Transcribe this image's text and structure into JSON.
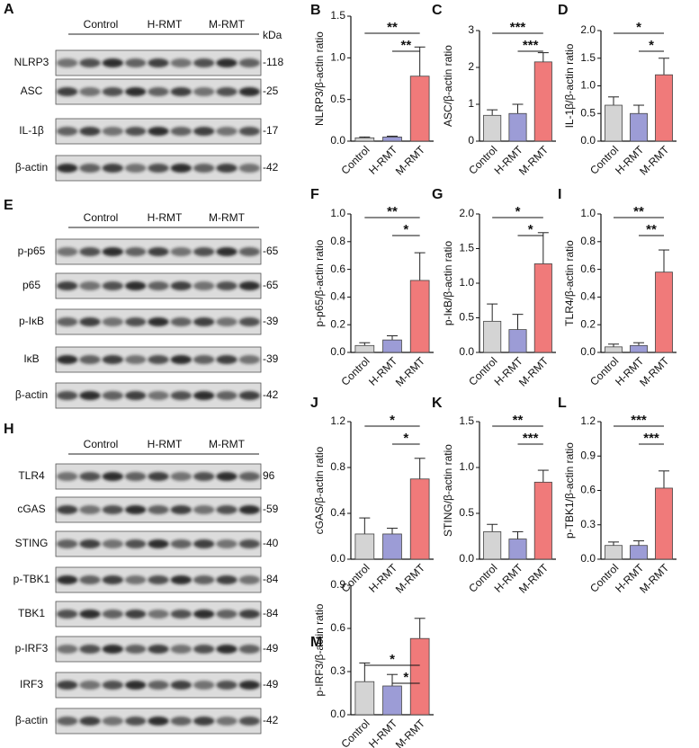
{
  "blots": [
    {
      "panel": "A",
      "unit": "kDa",
      "groups": [
        "Control",
        "H-RMT",
        "M-RMT"
      ],
      "rows": [
        {
          "label": "NLRP3",
          "marker": "-118"
        },
        {
          "label": "ASC",
          "marker": "-25"
        },
        {
          "label": "IL-1β",
          "marker": "-17"
        },
        {
          "label": "β-actin",
          "marker": "-42"
        }
      ]
    },
    {
      "panel": "E",
      "groups": [
        "Control",
        "H-RMT",
        "M-RMT"
      ],
      "rows": [
        {
          "label": "p-p65",
          "marker": "-65"
        },
        {
          "label": "p65",
          "marker": "-65"
        },
        {
          "label": "p-IκB",
          "marker": "-39"
        },
        {
          "label": "IκB",
          "marker": "-39"
        },
        {
          "label": "β-actin",
          "marker": "-42"
        }
      ]
    },
    {
      "panel": "H",
      "groups": [
        "Control",
        "H-RMT",
        "M-RMT"
      ],
      "rows": [
        {
          "label": "TLR4",
          "marker": "96"
        },
        {
          "label": "cGAS",
          "marker": "-59"
        },
        {
          "label": "STING",
          "marker": "-40"
        },
        {
          "label": "p-TBK1",
          "marker": "-84"
        },
        {
          "label": "TBK1",
          "marker": "-84"
        },
        {
          "label": "p-IRF3",
          "marker": "-49"
        },
        {
          "label": "IRF3",
          "marker": "-49"
        },
        {
          "label": "β-actin",
          "marker": "-42"
        }
      ]
    }
  ],
  "chart_data": [
    {
      "type": "bar",
      "panel": "B",
      "ylabel": "NLRP3/β-actin ratio",
      "categories": [
        "Control",
        "H-RMT",
        "M-RMT"
      ],
      "values": [
        0.04,
        0.05,
        0.78
      ],
      "errors": [
        0.01,
        0.01,
        0.35
      ],
      "colors": [
        "#d4d4d4",
        "#9c9cd6",
        "#f07a7a"
      ],
      "ylim": [
        0,
        1.5
      ],
      "yticks": [
        {
          "value": 0,
          "label": "0.0"
        },
        {
          "value": 0.5,
          "label": "0.5"
        },
        {
          "value": 1,
          "label": "1.0"
        },
        {
          "value": 1.5,
          "label": "1.5"
        }
      ],
      "significance": [
        "**",
        "**"
      ]
    },
    {
      "type": "bar",
      "panel": "C",
      "ylabel": "ASC/β-actin ratio",
      "categories": [
        "Control",
        "H-RMT",
        "M-RMT"
      ],
      "values": [
        0.7,
        0.75,
        2.15
      ],
      "errors": [
        0.15,
        0.25,
        0.25
      ],
      "colors": [
        "#d4d4d4",
        "#9c9cd6",
        "#f07a7a"
      ],
      "ylim": [
        0,
        3
      ],
      "yticks": [
        0,
        1,
        2,
        3
      ],
      "significance": [
        "***",
        "***"
      ]
    },
    {
      "type": "bar",
      "panel": "D",
      "ylabel": "IL-1β/β-actin ratio",
      "categories": [
        "Control",
        "H-RMT",
        "M-RMT"
      ],
      "values": [
        0.65,
        0.5,
        1.2
      ],
      "errors": [
        0.15,
        0.15,
        0.3
      ],
      "colors": [
        "#d4d4d4",
        "#9c9cd6",
        "#f07a7a"
      ],
      "ylim": [
        0,
        2
      ],
      "yticks": [
        {
          "value": 0,
          "label": "0.0"
        },
        {
          "value": 0.5,
          "label": "0.5"
        },
        {
          "value": 1,
          "label": "1.0"
        },
        {
          "value": 1.5,
          "label": "1.5"
        },
        {
          "value": 2,
          "label": "2.0"
        }
      ],
      "significance": [
        "*",
        "*"
      ]
    },
    {
      "type": "bar",
      "panel": "F",
      "ylabel": "p-p65/β-actin ratio",
      "categories": [
        "Control",
        "H-RMT",
        "M-RMT"
      ],
      "values": [
        0.05,
        0.09,
        0.52
      ],
      "errors": [
        0.02,
        0.03,
        0.2
      ],
      "colors": [
        "#d4d4d4",
        "#9c9cd6",
        "#f07a7a"
      ],
      "ylim": [
        0,
        1
      ],
      "yticks": [
        {
          "value": 0,
          "label": "0.0"
        },
        {
          "value": 0.2,
          "label": "0.2"
        },
        {
          "value": 0.4,
          "label": "0.4"
        },
        {
          "value": 0.6,
          "label": "0.6"
        },
        {
          "value": 0.8,
          "label": "0.8"
        },
        {
          "value": 1,
          "label": "1.0"
        }
      ],
      "significance": [
        "**",
        "*"
      ]
    },
    {
      "type": "bar",
      "panel": "G",
      "ylabel": "p-IκB/β-actin ratio",
      "categories": [
        "Control",
        "H-RMT",
        "M-RMT"
      ],
      "values": [
        0.45,
        0.33,
        1.28
      ],
      "errors": [
        0.25,
        0.22,
        0.45
      ],
      "colors": [
        "#d4d4d4",
        "#9c9cd6",
        "#f07a7a"
      ],
      "ylim": [
        0,
        2
      ],
      "yticks": [
        {
          "value": 0,
          "label": "0.0"
        },
        {
          "value": 0.5,
          "label": "0.5"
        },
        {
          "value": 1,
          "label": "1.0"
        },
        {
          "value": 1.5,
          "label": "1.5"
        },
        {
          "value": 2,
          "label": "2.0"
        }
      ],
      "significance": [
        "*",
        "*"
      ]
    },
    {
      "type": "bar",
      "panel": "I",
      "ylabel": "TLR4/β-actin ratio",
      "categories": [
        "Control",
        "H-RMT",
        "M-RMT"
      ],
      "values": [
        0.04,
        0.05,
        0.58
      ],
      "errors": [
        0.02,
        0.02,
        0.16
      ],
      "colors": [
        "#d4d4d4",
        "#9c9cd6",
        "#f07a7a"
      ],
      "ylim": [
        0,
        1
      ],
      "yticks": [
        {
          "value": 0,
          "label": "0.0"
        },
        {
          "value": 0.2,
          "label": "0.2"
        },
        {
          "value": 0.4,
          "label": "0.4"
        },
        {
          "value": 0.6,
          "label": "0.6"
        },
        {
          "value": 0.8,
          "label": "0.8"
        },
        {
          "value": 1,
          "label": "1.0"
        }
      ],
      "significance": [
        "**",
        "**"
      ]
    },
    {
      "type": "bar",
      "panel": "J",
      "ylabel": "cGAS/β-actin ratio",
      "categories": [
        "Control",
        "H-RMT",
        "M-RMT"
      ],
      "values": [
        0.22,
        0.22,
        0.7
      ],
      "errors": [
        0.14,
        0.05,
        0.18
      ],
      "colors": [
        "#d4d4d4",
        "#9c9cd6",
        "#f07a7a"
      ],
      "ylim": [
        0,
        1.2
      ],
      "yticks": [
        {
          "value": 0,
          "label": "0.0"
        },
        {
          "value": 0.4,
          "label": "0.4"
        },
        {
          "value": 0.8,
          "label": "0.8"
        },
        {
          "value": 1.2,
          "label": "1.2"
        }
      ],
      "significance": [
        "*",
        "*"
      ]
    },
    {
      "type": "bar",
      "panel": "K",
      "ylabel": "STING/β-actin ratio",
      "categories": [
        "Control",
        "H-RMT",
        "M-RMT"
      ],
      "values": [
        0.3,
        0.22,
        0.84
      ],
      "errors": [
        0.08,
        0.08,
        0.13
      ],
      "colors": [
        "#d4d4d4",
        "#9c9cd6",
        "#f07a7a"
      ],
      "ylim": [
        0,
        1.5
      ],
      "yticks": [
        {
          "value": 0,
          "label": "0.0"
        },
        {
          "value": 0.5,
          "label": "0.5"
        },
        {
          "value": 1,
          "label": "1.0"
        },
        {
          "value": 1.5,
          "label": "1.5"
        }
      ],
      "significance": [
        "**",
        "***"
      ]
    },
    {
      "type": "bar",
      "panel": "L",
      "ylabel": "p-TBK1/β-actin ratio",
      "categories": [
        "Control",
        "H-RMT",
        "M-RMT"
      ],
      "values": [
        0.12,
        0.12,
        0.62
      ],
      "errors": [
        0.03,
        0.04,
        0.15
      ],
      "colors": [
        "#d4d4d4",
        "#9c9cd6",
        "#f07a7a"
      ],
      "ylim": [
        0,
        1.2
      ],
      "yticks": [
        {
          "value": 0,
          "label": "0.0"
        },
        {
          "value": 0.3,
          "label": "0.3"
        },
        {
          "value": 0.6,
          "label": "0.6"
        },
        {
          "value": 0.9,
          "label": "0.9"
        },
        {
          "value": 1.2,
          "label": "1.2"
        }
      ],
      "significance": [
        "***",
        "***"
      ]
    },
    {
      "type": "bar",
      "panel": "M",
      "ylabel": "p-IRF3/β-actin ratio",
      "categories": [
        "Control",
        "H-RMT",
        "M-RMT"
      ],
      "values": [
        0.23,
        0.2,
        0.53
      ],
      "errors": [
        0.13,
        0.08,
        0.14
      ],
      "colors": [
        "#d4d4d4",
        "#9c9cd6",
        "#f07a7a"
      ],
      "ylim": [
        0,
        0.9
      ],
      "yticks": [
        {
          "value": 0,
          "label": "0.0"
        },
        {
          "value": 0.3,
          "label": "0.3"
        },
        {
          "value": 0.6,
          "label": "0.6"
        },
        {
          "value": 0.9,
          "label": "0.9"
        }
      ],
      "significance": [
        "*",
        "*"
      ]
    }
  ]
}
